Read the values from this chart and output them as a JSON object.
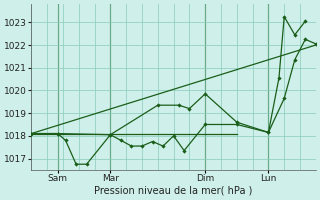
{
  "xlabel": "Pression niveau de la mer( hPa )",
  "background_color": "#cff0ea",
  "grid_color": "#88ccbb",
  "line_color": "#1a5e1a",
  "xlim": [
    0,
    108
  ],
  "ylim": [
    1016.5,
    1023.8
  ],
  "yticks": [
    1017,
    1018,
    1019,
    1020,
    1021,
    1022,
    1023
  ],
  "xtick_positions": [
    10,
    30,
    66,
    90
  ],
  "xtick_labels": [
    "Sam",
    "Mar",
    "Dim",
    "Lun"
  ],
  "vline_positions": [
    10,
    30,
    66,
    90
  ],
  "trend_x": [
    0,
    108
  ],
  "trend_y": [
    1018.1,
    1022.0
  ],
  "flat_line_x": [
    0,
    78
  ],
  "flat_line_y": [
    1018.1,
    1018.1
  ],
  "series1_x": [
    0,
    10,
    13,
    17,
    21,
    30,
    34,
    38,
    42,
    46,
    50,
    54,
    58,
    66,
    78,
    90,
    96,
    100,
    104,
    108
  ],
  "series1_y": [
    1018.1,
    1018.1,
    1017.8,
    1016.75,
    1016.75,
    1018.05,
    1017.8,
    1017.55,
    1017.55,
    1017.75,
    1017.55,
    1018.0,
    1017.35,
    1018.5,
    1018.5,
    1018.15,
    1019.65,
    1021.35,
    1022.25,
    1022.05
  ],
  "series2_x": [
    0,
    10,
    30,
    48,
    56,
    60,
    66,
    78,
    90,
    94,
    96,
    100,
    104
  ],
  "series2_y": [
    1018.1,
    1018.1,
    1018.05,
    1019.35,
    1019.35,
    1019.2,
    1019.85,
    1018.6,
    1018.15,
    1020.55,
    1023.25,
    1022.45,
    1023.05
  ]
}
